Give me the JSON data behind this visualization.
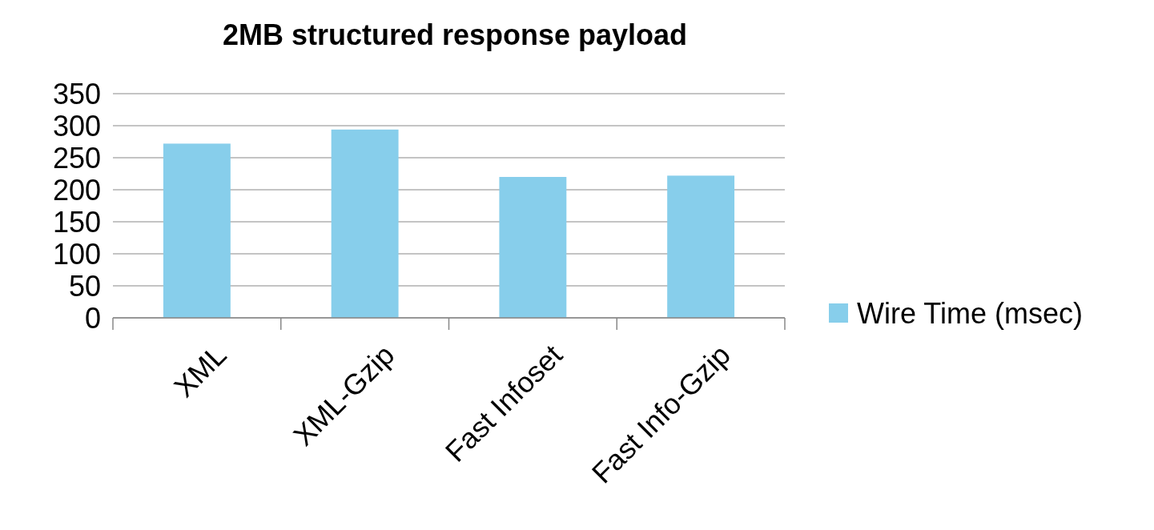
{
  "chart_data": {
    "type": "bar",
    "title": "2MB structured response payload",
    "categories": [
      "XML",
      "XML-Gzip",
      "Fast Infoset",
      "Fast Info-Gzip"
    ],
    "series": [
      {
        "name": "Wire Time (msec)",
        "color": "#87ceeb",
        "values": [
          272,
          294,
          220,
          222
        ]
      }
    ],
    "ylim": [
      0,
      350
    ],
    "yticks": [
      0,
      50,
      100,
      150,
      200,
      250,
      300,
      350
    ],
    "grid": "y",
    "legend": "right"
  }
}
